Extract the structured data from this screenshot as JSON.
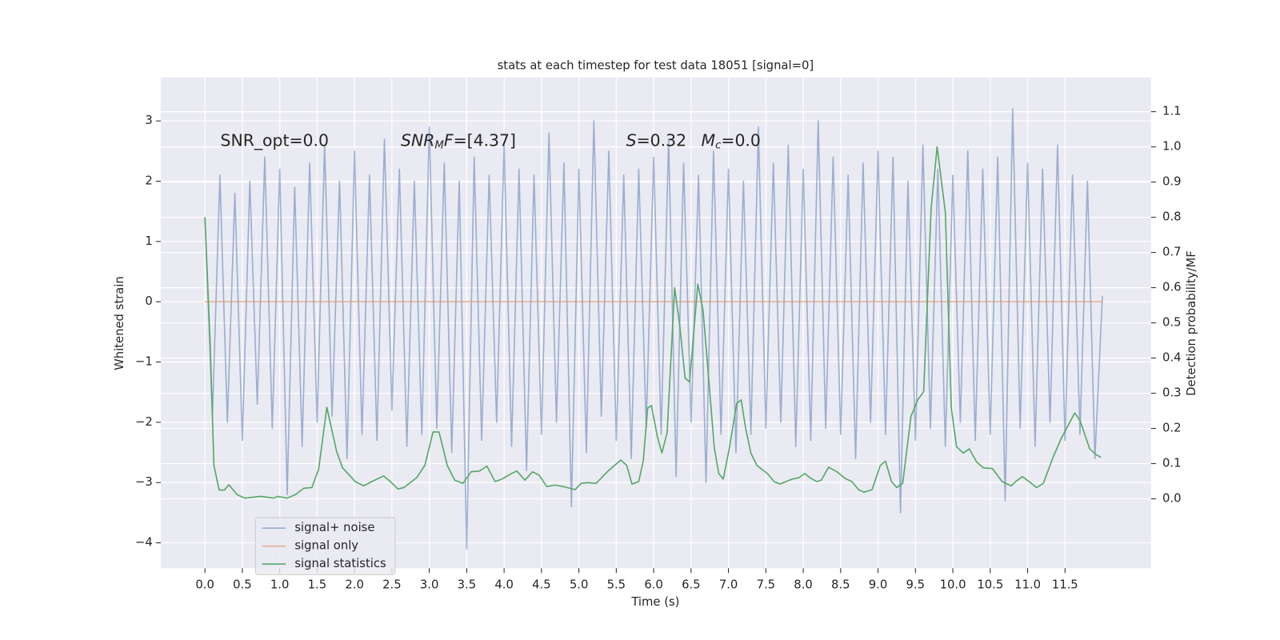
{
  "chart_data": {
    "type": "line",
    "title": "stats at each timestep for test data 18051 [signal=0]",
    "x_label": "Time (s)",
    "y_label": "Whitened strain",
    "y2_label": "Detection probability/MF",
    "xlim": [
      -0.59,
      12.65
    ],
    "ylim": [
      -4.42,
      3.72
    ],
    "y2lim": [
      -0.197,
      1.197
    ],
    "xticks": [
      {
        "value": 0,
        "label": "0.0"
      },
      0.5,
      {
        "value": 1,
        "label": "1.0"
      },
      1.5,
      {
        "value": 2,
        "label": "2.0"
      },
      2.5,
      {
        "value": 3,
        "label": "3.0"
      },
      3.5,
      {
        "value": 4,
        "label": "4.0"
      },
      4.5,
      {
        "value": 5,
        "label": "5.0"
      },
      5.5,
      {
        "value": 6,
        "label": "6.0"
      },
      6.5,
      {
        "value": 7,
        "label": "7.0"
      },
      7.5,
      {
        "value": 8,
        "label": "8.0"
      },
      8.5,
      {
        "value": 9,
        "label": "9.0"
      },
      9.5,
      {
        "value": 10,
        "label": "10.0"
      },
      10.5,
      {
        "value": 11,
        "label": "11.0"
      },
      11.5
    ],
    "yticks": [
      {
        "value": -4,
        "label": "−4"
      },
      {
        "value": -3,
        "label": "−3"
      },
      {
        "value": -2,
        "label": "−2"
      },
      {
        "value": -1,
        "label": "−1"
      },
      0,
      1,
      2,
      3
    ],
    "y2ticks": [
      {
        "value": 0,
        "label": "0.0"
      },
      0.1,
      0.2,
      0.3,
      0.4,
      0.5,
      0.6,
      0.7,
      0.8,
      0.9,
      {
        "value": 1,
        "label": "1.0"
      },
      1.1
    ],
    "grid": true,
    "legend": "lower left",
    "annotations": [
      [
        {
          "text": "SNR_opt=0.0"
        }
      ],
      [
        {
          "text": "SNR",
          "style": "italic"
        },
        {
          "text": "M",
          "style": "italic-sub"
        },
        {
          "text": "F=[4.37]",
          "style": "italic-first"
        }
      ],
      [
        {
          "text": "S",
          "style": "italic"
        },
        {
          "text": "=0.32"
        },
        {
          "text": "M",
          "style": "italic-gap"
        },
        {
          "text": "c",
          "style": "italic-sub"
        },
        {
          "text": "=0.0",
          "style": "up"
        }
      ]
    ],
    "series": [
      {
        "name": "signal+ noise",
        "color": "#4c72b0",
        "opacity": 0.5,
        "x": [
          0,
          0.1,
          0.2,
          0.3,
          0.4,
          0.5,
          0.6,
          0.7,
          0.8,
          0.9,
          1,
          1.1,
          1.2,
          1.3,
          1.4,
          1.5,
          1.6,
          1.7,
          1.8,
          1.9,
          2,
          2.1,
          2.2,
          2.3,
          2.4,
          2.5,
          2.6,
          2.7,
          2.8,
          2.9,
          3,
          3.1,
          3.2,
          3.3,
          3.4,
          3.5,
          3.6,
          3.7,
          3.8,
          3.9,
          4,
          4.1,
          4.2,
          4.3,
          4.4,
          4.5,
          4.6,
          4.7,
          4.8,
          4.9,
          5,
          5.1,
          5.2,
          5.3,
          5.4,
          5.5,
          5.6,
          5.7,
          5.8,
          5.9,
          6,
          6.1,
          6.2,
          6.3,
          6.4,
          6.5,
          6.6,
          6.7,
          6.8,
          6.9,
          7,
          7.1,
          7.2,
          7.3,
          7.4,
          7.5,
          7.6,
          7.7,
          7.8,
          7.9,
          8,
          8.1,
          8.2,
          8.3,
          8.4,
          8.5,
          8.6,
          8.7,
          8.8,
          8.9,
          9,
          9.1,
          9.2,
          9.3,
          9.4,
          9.5,
          9.6,
          9.7,
          9.8,
          9.9,
          10,
          10.1,
          10.2,
          10.3,
          10.4,
          10.5,
          10.6,
          10.7,
          10.8,
          10.9,
          11,
          11.1,
          11.2,
          11.3,
          11.4,
          11.5,
          11.6,
          11.7,
          11.8,
          11.9,
          12
        ],
        "values": [
          1.4,
          -1.9,
          2.1,
          -2.0,
          1.8,
          -2.3,
          2.0,
          -1.7,
          2.4,
          -2.1,
          2.2,
          -3.2,
          1.9,
          -2.4,
          2.3,
          -2.0,
          2.6,
          -1.9,
          2.0,
          -2.6,
          2.5,
          -2.2,
          2.1,
          -2.3,
          2.7,
          -1.8,
          2.2,
          -2.4,
          2.0,
          -2.2,
          2.9,
          -2.1,
          2.3,
          -2.5,
          2.0,
          -4.1,
          2.4,
          -2.3,
          2.1,
          -2.0,
          2.6,
          -2.4,
          2.2,
          -2.8,
          2.1,
          -2.2,
          2.8,
          -2.0,
          2.3,
          -3.4,
          2.2,
          -2.5,
          3.0,
          -1.9,
          2.5,
          -2.3,
          2.1,
          -2.6,
          2.2,
          -2.1,
          2.4,
          -2.2,
          2.7,
          -2.9,
          2.3,
          -2.0,
          2.1,
          -3.0,
          2.5,
          -2.2,
          2.2,
          -2.5,
          2.0,
          -2.2,
          2.9,
          -2.1,
          2.3,
          -2.0,
          2.6,
          -2.4,
          2.2,
          -2.3,
          3.0,
          -2.1,
          2.4,
          -2.2,
          2.1,
          -2.6,
          2.3,
          -2.0,
          2.5,
          -2.2,
          2.4,
          -3.5,
          2.0,
          -2.3,
          2.6,
          -2.1,
          2.2,
          -2.4,
          2.1,
          -2.0,
          2.5,
          -2.3,
          2.2,
          -2.2,
          2.4,
          -3.3,
          3.2,
          -2.1,
          2.3,
          -2.4,
          2.2,
          -2.0,
          2.6,
          -2.3,
          2.1,
          -2.2,
          2.0,
          -2.6,
          0.1
        ]
      },
      {
        "name": "signal only",
        "color": "#dd8452",
        "opacity": 0.6,
        "x": [
          0,
          12
        ],
        "values": [
          0,
          0
        ]
      },
      {
        "name": "signal statistics",
        "color": "#55a868",
        "opacity": 1,
        "axis": "y2",
        "x": [
          0,
          0.07,
          0.12,
          0.19,
          0.26,
          0.32,
          0.43,
          0.53,
          0.75,
          0.92,
          0.97,
          1.1,
          1.21,
          1.32,
          1.43,
          1.52,
          1.63,
          1.76,
          1.84,
          2.01,
          2.12,
          2.23,
          2.39,
          2.48,
          2.58,
          2.66,
          2.83,
          2.94,
          3.05,
          3.13,
          3.24,
          3.34,
          3.45,
          3.56,
          3.67,
          3.77,
          3.88,
          3.97,
          4.1,
          4.17,
          4.28,
          4.38,
          4.47,
          4.57,
          4.68,
          4.79,
          4.95,
          5.03,
          5.12,
          5.23,
          5.39,
          5.56,
          5.64,
          5.71,
          5.8,
          5.86,
          5.92,
          5.97,
          6.05,
          6.11,
          6.18,
          6.28,
          6.35,
          6.42,
          6.48,
          6.59,
          6.66,
          6.75,
          6.81,
          6.87,
          6.93,
          7.01,
          7.11,
          7.17,
          7.23,
          7.3,
          7.38,
          7.52,
          7.61,
          7.69,
          7.85,
          7.94,
          8.02,
          8.09,
          8.18,
          8.24,
          8.34,
          8.45,
          8.56,
          8.65,
          8.74,
          8.81,
          8.92,
          9.03,
          9.1,
          9.18,
          9.25,
          9.33,
          9.44,
          9.53,
          9.61,
          9.71,
          9.79,
          9.9,
          9.98,
          10.05,
          10.14,
          10.22,
          10.32,
          10.41,
          10.53,
          10.66,
          10.78,
          10.84,
          10.93,
          11.02,
          11.12,
          11.21,
          11.34,
          11.45,
          11.63,
          11.7,
          11.83,
          11.92,
          11.98
        ],
        "values": [
          0.8,
          0.44,
          0.095,
          0.025,
          0.025,
          0.04,
          0.012,
          0.002,
          0.007,
          0.002,
          0.007,
          0.002,
          0.012,
          0.03,
          0.032,
          0.084,
          0.26,
          0.135,
          0.088,
          0.049,
          0.037,
          0.049,
          0.065,
          0.049,
          0.028,
          0.032,
          0.06,
          0.095,
          0.19,
          0.19,
          0.095,
          0.053,
          0.044,
          0.077,
          0.079,
          0.093,
          0.049,
          0.056,
          0.072,
          0.079,
          0.053,
          0.077,
          0.067,
          0.035,
          0.039,
          0.035,
          0.026,
          0.044,
          0.046,
          0.044,
          0.079,
          0.11,
          0.095,
          0.042,
          0.049,
          0.107,
          0.258,
          0.265,
          0.176,
          0.13,
          0.188,
          0.6,
          0.49,
          0.343,
          0.332,
          0.61,
          0.536,
          0.304,
          0.146,
          0.072,
          0.056,
          0.142,
          0.271,
          0.281,
          0.2,
          0.13,
          0.095,
          0.072,
          0.049,
          0.042,
          0.056,
          0.06,
          0.072,
          0.06,
          0.049,
          0.053,
          0.09,
          0.077,
          0.058,
          0.049,
          0.026,
          0.019,
          0.026,
          0.095,
          0.107,
          0.049,
          0.032,
          0.044,
          0.234,
          0.281,
          0.304,
          0.826,
          1.0,
          0.814,
          0.258,
          0.148,
          0.13,
          0.142,
          0.104,
          0.088,
          0.086,
          0.049,
          0.037,
          0.049,
          0.063,
          0.049,
          0.032,
          0.044,
          0.118,
          0.172,
          0.244,
          0.223,
          0.142,
          0.125,
          0.118
        ]
      }
    ]
  }
}
